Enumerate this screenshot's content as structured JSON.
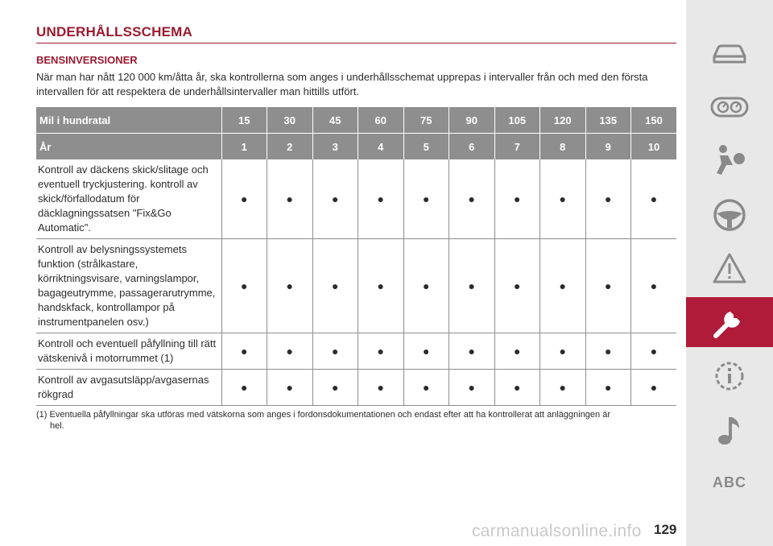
{
  "heading": "UNDERHÅLLSSCHEMA",
  "subheading": "BENSINVERSIONER",
  "intro": "När man har nått 120 000 km/åtta år, ska kontrollerna som anges i underhållsschemat upprepas i intervaller från och med den första intervallen för att respektera de underhållsintervaller man hittills utfört.",
  "table": {
    "header1_label": "Mil i hundratal",
    "header1_values": [
      "15",
      "30",
      "45",
      "60",
      "75",
      "90",
      "105",
      "120",
      "135",
      "150"
    ],
    "header2_label": "År",
    "header2_values": [
      "1",
      "2",
      "3",
      "4",
      "5",
      "6",
      "7",
      "8",
      "9",
      "10"
    ],
    "rows": [
      {
        "label": "Kontroll av däckens skick/slitage och eventuell tryckjustering. kontroll av skick/förfallodatum för däcklagningssatsen \"Fix&Go Automatic\".",
        "marks": [
          "●",
          "●",
          "●",
          "●",
          "●",
          "●",
          "●",
          "●",
          "●",
          "●"
        ]
      },
      {
        "label": "Kontroll av belysningssystemets funktion (strålkastare, körriktningsvisare, varningslampor, bagageutrymme, passagerarutrymme, handskfack, kontrollampor på instrumentpanelen osv.)",
        "marks": [
          "●",
          "●",
          "●",
          "●",
          "●",
          "●",
          "●",
          "●",
          "●",
          "●"
        ]
      },
      {
        "label": "Kontroll och eventuell påfyllning till rätt vätskenivå i motorrummet (1)",
        "marks": [
          "●",
          "●",
          "●",
          "●",
          "●",
          "●",
          "●",
          "●",
          "●",
          "●"
        ]
      },
      {
        "label": "Kontroll av avgasutsläpp/avgasernas rökgrad",
        "marks": [
          "●",
          "●",
          "●",
          "●",
          "●",
          "●",
          "●",
          "●",
          "●",
          "●"
        ]
      }
    ]
  },
  "footnote_marker": "(1)",
  "footnote_line1": "Eventuella påfyllningar ska utföras med vätskorna som anges i fordonsdokumentationen och endast efter att ha kontrollerat att anläggningen är",
  "footnote_line2": "hel.",
  "page_number": "129",
  "watermark": "carmanualsonline.info",
  "sidebar": {
    "icons": [
      "car-icon",
      "instrument-cluster-icon",
      "airbag-seat-icon",
      "steering-wheel-icon",
      "warning-triangle-icon",
      "wrench-icon",
      "info-gear-icon",
      "music-note-icon"
    ],
    "abc_label": "ABC",
    "active_index": 5
  },
  "colors": {
    "accent": "#9b1b30",
    "sidebar_bg": "#e8e8e8",
    "active_tab": "#b01b3a",
    "table_header": "#8e8e8e",
    "icon_gray": "#8a8a8a"
  }
}
